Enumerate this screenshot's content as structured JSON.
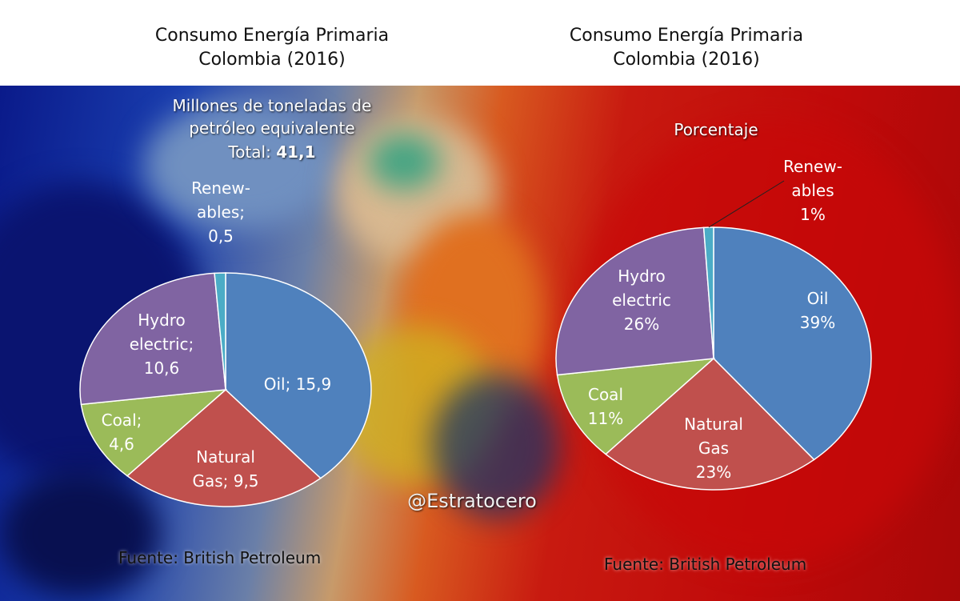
{
  "titles": {
    "left": [
      "Consumo Energía Primaria",
      "Colombia (2016)"
    ],
    "right": [
      "Consumo Energía Primaria",
      "Colombia (2016)"
    ]
  },
  "left_notes": {
    "unit_line1": "Millones de toneladas de",
    "unit_line2": "petróleo equivalente",
    "total_prefix": "Total: ",
    "total_value": "41,1"
  },
  "right_notes": {
    "unit": "Porcentaje"
  },
  "watermark": "@Estratocero",
  "source_left": "Fuente: British Petroleum",
  "source_right": "Fuente: British Petroleum",
  "colors": {
    "Oil": "#4f81bd",
    "Natural Gas": "#c0504d",
    "Coal": "#9bbb59",
    "Hydro electric": "#8064a2",
    "Renewables": "#4bacc6"
  },
  "chart_data": [
    {
      "type": "pie",
      "title": "Consumo Energía Primaria Colombia (2016)",
      "unit": "Millones de toneladas de petróleo equivalente",
      "total": 41.1,
      "slices": [
        {
          "name": "Oil",
          "value": 15.9,
          "label_lines": [
            "Oil; 15,9"
          ]
        },
        {
          "name": "Natural Gas",
          "value": 9.5,
          "label_lines": [
            "Natural",
            "Gas; 9,5"
          ]
        },
        {
          "name": "Coal",
          "value": 4.6,
          "label_lines": [
            "Coal;",
            "4,6"
          ]
        },
        {
          "name": "Hydro electric",
          "value": 10.6,
          "label_lines": [
            "Hydro",
            "electric;",
            "10,6"
          ]
        },
        {
          "name": "Renewables",
          "value": 0.5,
          "label_lines": [
            "Renew-",
            "ables;",
            "0,5"
          ]
        }
      ]
    },
    {
      "type": "pie",
      "title": "Consumo Energía Primaria Colombia (2016)",
      "unit": "Porcentaje",
      "slices": [
        {
          "name": "Oil",
          "value": 39,
          "label_lines": [
            "Oil",
            "39%"
          ]
        },
        {
          "name": "Natural Gas",
          "value": 23,
          "label_lines": [
            "Natural",
            "Gas",
            "23%"
          ]
        },
        {
          "name": "Coal",
          "value": 11,
          "label_lines": [
            "Coal",
            "11%"
          ]
        },
        {
          "name": "Hydro electric",
          "value": 26,
          "label_lines": [
            "Hydro",
            "electric",
            "26%"
          ]
        },
        {
          "name": "Renewables",
          "value": 1,
          "label_lines": [
            "Renew-",
            "ables",
            "1%"
          ]
        }
      ]
    }
  ]
}
